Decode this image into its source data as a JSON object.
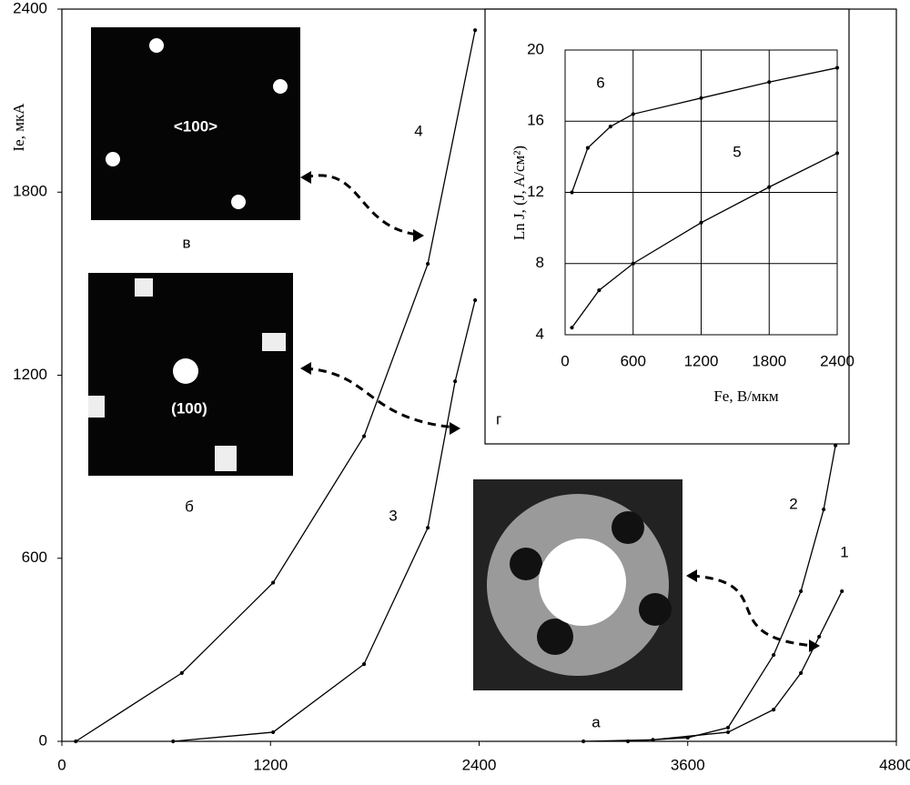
{
  "chart_data": [
    {
      "type": "line",
      "ylabel": "Ie,  мкА",
      "xlim": [
        0,
        4800
      ],
      "xticks": [
        0,
        1200,
        2400,
        3600,
        4800
      ],
      "ylim": [
        0,
        2400
      ],
      "yticks": [
        0,
        600,
        1200,
        1800,
        2400
      ],
      "series": [
        {
          "name": "1",
          "color": "#000000",
          "x": [
            3000,
            3400,
            3832,
            4094,
            4251,
            4356,
            4487
          ],
          "values": [
            0,
            5,
            30,
            104,
            224,
            343,
            492
          ]
        },
        {
          "name": "2",
          "color": "#000000",
          "x": [
            3256,
            3600,
            3832,
            4094,
            4251,
            4382,
            4450
          ],
          "values": [
            0,
            12,
            45,
            283,
            492,
            760,
            970
          ]
        },
        {
          "name": "3",
          "color": "#000000",
          "x": [
            640,
            1215,
            1738,
            2105,
            2262,
            2377
          ],
          "values": [
            0,
            30,
            253,
            700,
            1180,
            1446
          ]
        },
        {
          "name": "4",
          "color": "#000000",
          "x": [
            80,
            690,
            1215,
            1738,
            2105,
            2377
          ],
          "values": [
            0,
            224,
            520,
            1000,
            1565,
            2331
          ]
        }
      ]
    },
    {
      "type": "line",
      "ylabel": "Ln J,  (J, A/см²)",
      "xlabel": "Fe,  В/мкм",
      "panel": "г",
      "grid": true,
      "xlim": [
        0,
        2400
      ],
      "xticks": [
        0,
        600,
        1200,
        1800,
        2400
      ],
      "ylim": [
        4,
        20
      ],
      "yticks": [
        4,
        8,
        12,
        16,
        20
      ],
      "series": [
        {
          "name": "5",
          "color": "#000000",
          "x": [
            60,
            300,
            600,
            1200,
            1800,
            2400
          ],
          "values": [
            4.4,
            6.5,
            8,
            10.3,
            12.3,
            14.2
          ]
        },
        {
          "name": "6",
          "color": "#000000",
          "x": [
            60,
            200,
            400,
            600,
            1200,
            1800,
            2400
          ],
          "values": [
            12,
            14.5,
            15.7,
            16.4,
            17.3,
            18.2,
            19
          ]
        }
      ]
    }
  ],
  "images": [
    {
      "label": "в",
      "text": "<100>"
    },
    {
      "label": "б",
      "text": "(100)"
    },
    {
      "label": "а"
    }
  ]
}
